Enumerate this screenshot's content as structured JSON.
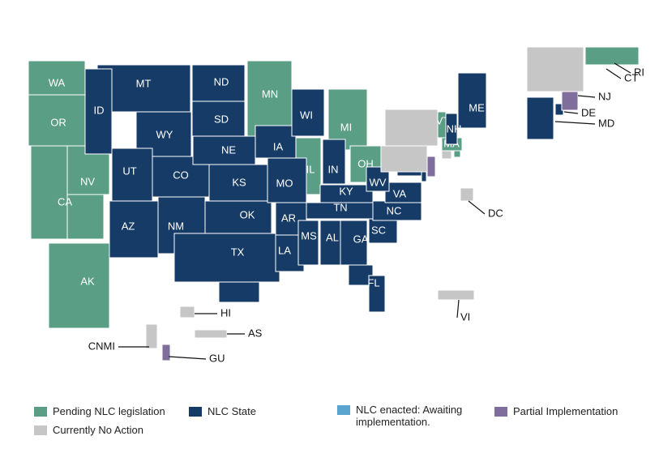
{
  "legend": [
    {
      "label": "Pending NLC legislation",
      "color": "#5b9e86",
      "states": [
        "WA",
        "OR",
        "CA",
        "NV",
        "MN",
        "MI",
        "IL",
        "OH",
        "AK",
        "VT",
        "MA",
        "RI"
      ]
    },
    {
      "label": "NLC State",
      "color": "#163b66",
      "states": [
        "MT",
        "ND",
        "SD",
        "WY",
        "ID",
        "UT",
        "CO",
        "NE",
        "KS",
        "AZ",
        "NM",
        "OK",
        "TX",
        "IA",
        "MO",
        "AR",
        "LA",
        "WI",
        "IN",
        "KY",
        "TN",
        "MS",
        "AL",
        "GA",
        "FL",
        "SC",
        "NC",
        "VA",
        "WV",
        "ME",
        "NH",
        "DE",
        "MD"
      ]
    },
    {
      "label": "NLC enacted: Awaiting implementation.",
      "color": "#5aa5d0",
      "states": []
    },
    {
      "label": "Partial Implementation",
      "color": "#7f6e9b",
      "states": [
        "NJ",
        "GU"
      ]
    },
    {
      "label": "Currently No Action",
      "color": "#c6c6c6",
      "states": [
        null,
        null,
        "CT",
        "DC",
        "VI",
        "HI",
        "AS",
        "CNMI"
      ]
    }
  ]
}
